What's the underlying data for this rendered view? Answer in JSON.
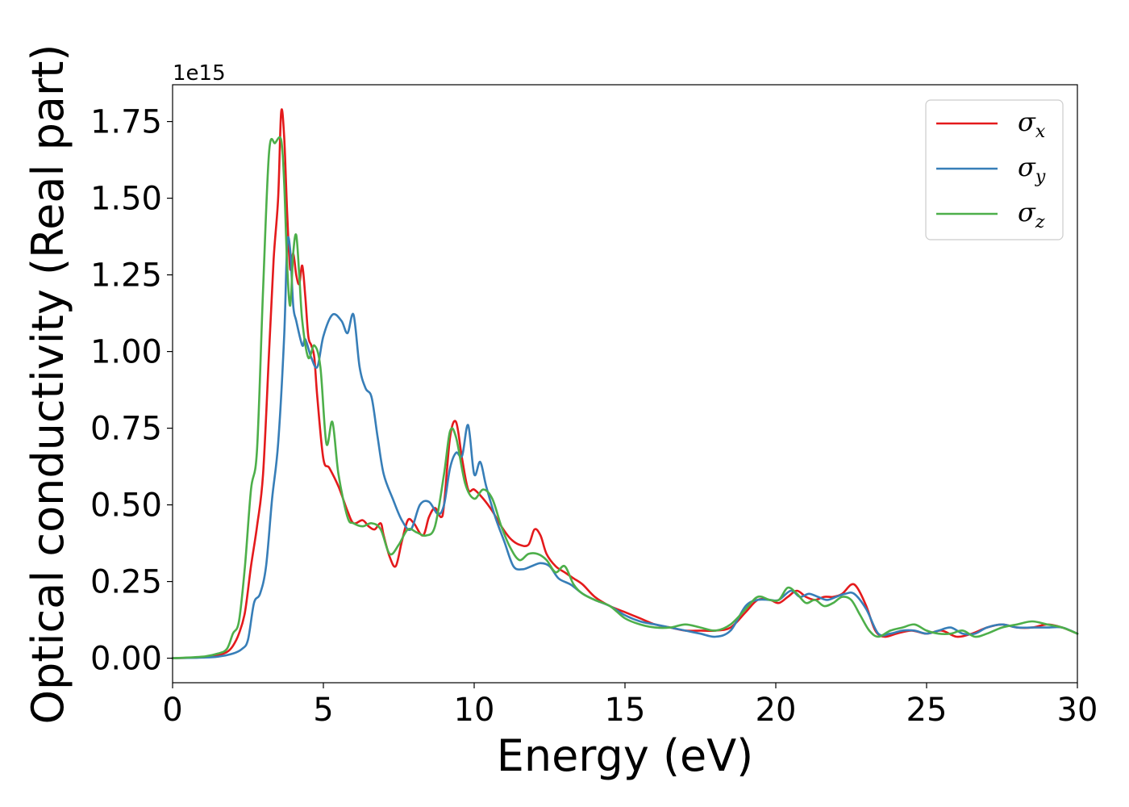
{
  "chart_data": {
    "type": "line",
    "xlabel": "Energy (eV)",
    "ylabel": "Optical conductivity (Real part)",
    "y_offset_text": "1e15",
    "y_scale_factor": 1000000000000000.0,
    "xlim": [
      0,
      30
    ],
    "ylim": [
      -0.08,
      1.87
    ],
    "xticks": [
      0,
      5,
      10,
      15,
      20,
      25,
      30
    ],
    "xtick_labels": [
      "0",
      "5",
      "10",
      "15",
      "20",
      "25",
      "30"
    ],
    "yticks": [
      0,
      0.25,
      0.5,
      0.75,
      1.0,
      1.25,
      1.5,
      1.75
    ],
    "ytick_labels": [
      "0.00",
      "0.25",
      "0.50",
      "0.75",
      "1.00",
      "1.25",
      "1.50",
      "1.75"
    ],
    "grid": false,
    "legend_position": "top-right",
    "series": [
      {
        "name": "σx",
        "symbol": "σ",
        "subscript": "x",
        "color": "#e41a1c",
        "x": [
          0,
          1,
          1.5,
          1.8,
          2.0,
          2.2,
          2.4,
          2.6,
          2.8,
          3.0,
          3.2,
          3.35,
          3.5,
          3.6,
          3.7,
          3.8,
          3.9,
          4.0,
          4.1,
          4.2,
          4.3,
          4.4,
          4.5,
          4.6,
          4.7,
          4.8,
          5.0,
          5.2,
          5.5,
          5.8,
          6.0,
          6.3,
          6.5,
          6.7,
          6.9,
          7.0,
          7.2,
          7.4,
          7.6,
          7.8,
          8.0,
          8.3,
          8.5,
          8.7,
          8.9,
          9.0,
          9.2,
          9.4,
          9.6,
          9.8,
          10.0,
          10.3,
          10.6,
          10.9,
          11.2,
          11.5,
          11.8,
          12.0,
          12.2,
          12.4,
          12.7,
          13.0,
          13.3,
          13.6,
          14.0,
          14.5,
          15.0,
          15.5,
          16.0,
          16.5,
          17.0,
          17.5,
          18.0,
          18.5,
          19.0,
          19.4,
          19.8,
          20.1,
          20.4,
          20.7,
          21.0,
          21.3,
          21.6,
          21.9,
          22.2,
          22.5,
          22.7,
          23.0,
          23.3,
          23.6,
          24.0,
          24.5,
          25.0,
          25.5,
          26.0,
          26.5,
          27.0,
          27.5,
          28.0,
          28.5,
          29.0,
          29.5,
          30.0
        ],
        "values": [
          0.0,
          0.003,
          0.01,
          0.02,
          0.04,
          0.08,
          0.15,
          0.3,
          0.43,
          0.6,
          1.0,
          1.3,
          1.5,
          1.78,
          1.7,
          1.45,
          1.27,
          1.32,
          1.25,
          1.22,
          1.28,
          1.18,
          1.05,
          1.02,
          0.98,
          0.85,
          0.65,
          0.62,
          0.56,
          0.48,
          0.44,
          0.45,
          0.43,
          0.42,
          0.44,
          0.4,
          0.33,
          0.3,
          0.38,
          0.45,
          0.44,
          0.4,
          0.46,
          0.49,
          0.46,
          0.5,
          0.72,
          0.77,
          0.65,
          0.55,
          0.55,
          0.52,
          0.48,
          0.43,
          0.39,
          0.37,
          0.37,
          0.42,
          0.4,
          0.34,
          0.3,
          0.28,
          0.26,
          0.24,
          0.2,
          0.17,
          0.15,
          0.13,
          0.11,
          0.1,
          0.09,
          0.09,
          0.09,
          0.1,
          0.15,
          0.19,
          0.19,
          0.18,
          0.2,
          0.22,
          0.2,
          0.19,
          0.2,
          0.2,
          0.21,
          0.24,
          0.23,
          0.17,
          0.09,
          0.07,
          0.08,
          0.09,
          0.08,
          0.09,
          0.07,
          0.08,
          0.1,
          0.11,
          0.1,
          0.1,
          0.11,
          0.1,
          0.08
        ]
      },
      {
        "name": "σy",
        "symbol": "σ",
        "subscript": "y",
        "color": "#377eb8",
        "x": [
          0,
          1,
          1.5,
          2.0,
          2.3,
          2.5,
          2.7,
          2.9,
          3.1,
          3.3,
          3.5,
          3.7,
          3.8,
          3.9,
          4.0,
          4.1,
          4.3,
          4.4,
          4.6,
          4.8,
          5.0,
          5.3,
          5.6,
          5.8,
          6.0,
          6.2,
          6.4,
          6.6,
          6.8,
          7.0,
          7.3,
          7.6,
          7.9,
          8.2,
          8.5,
          8.8,
          9.0,
          9.2,
          9.4,
          9.6,
          9.8,
          10.0,
          10.2,
          10.4,
          10.7,
          11.0,
          11.3,
          11.6,
          11.9,
          12.2,
          12.5,
          12.8,
          13.2,
          13.6,
          14.0,
          14.5,
          15.0,
          15.5,
          16.0,
          16.5,
          17.0,
          17.5,
          18.0,
          18.5,
          19.0,
          19.4,
          19.8,
          20.1,
          20.5,
          20.8,
          21.1,
          21.4,
          21.7,
          22.0,
          22.3,
          22.6,
          23.0,
          23.4,
          23.8,
          24.2,
          24.6,
          25.0,
          25.4,
          25.8,
          26.2,
          26.6,
          27.0,
          27.5,
          28.0,
          28.5,
          29.0,
          29.5,
          30.0
        ],
        "values": [
          0.0,
          0.002,
          0.005,
          0.015,
          0.03,
          0.06,
          0.18,
          0.21,
          0.3,
          0.52,
          0.7,
          1.05,
          1.35,
          1.33,
          1.15,
          1.1,
          1.02,
          1.04,
          0.98,
          0.95,
          1.05,
          1.12,
          1.1,
          1.06,
          1.12,
          0.95,
          0.88,
          0.85,
          0.72,
          0.6,
          0.52,
          0.45,
          0.42,
          0.5,
          0.51,
          0.47,
          0.5,
          0.62,
          0.67,
          0.66,
          0.76,
          0.6,
          0.64,
          0.56,
          0.46,
          0.38,
          0.3,
          0.29,
          0.3,
          0.31,
          0.3,
          0.26,
          0.24,
          0.21,
          0.19,
          0.17,
          0.14,
          0.12,
          0.11,
          0.1,
          0.09,
          0.08,
          0.07,
          0.09,
          0.17,
          0.19,
          0.19,
          0.19,
          0.22,
          0.2,
          0.21,
          0.2,
          0.19,
          0.2,
          0.21,
          0.21,
          0.16,
          0.08,
          0.08,
          0.09,
          0.09,
          0.08,
          0.09,
          0.1,
          0.08,
          0.08,
          0.1,
          0.11,
          0.1,
          0.1,
          0.1,
          0.1,
          0.08
        ]
      },
      {
        "name": "σz",
        "symbol": "σ",
        "subscript": "z",
        "color": "#4daf4a",
        "x": [
          0,
          1,
          1.5,
          1.8,
          2.0,
          2.2,
          2.4,
          2.6,
          2.8,
          3.0,
          3.2,
          3.4,
          3.6,
          3.7,
          3.8,
          3.9,
          4.0,
          4.1,
          4.2,
          4.3,
          4.5,
          4.7,
          4.9,
          5.1,
          5.3,
          5.5,
          5.8,
          6.0,
          6.3,
          6.6,
          6.9,
          7.2,
          7.5,
          7.8,
          8.1,
          8.4,
          8.7,
          9.0,
          9.2,
          9.4,
          9.7,
          10.0,
          10.3,
          10.6,
          10.9,
          11.2,
          11.5,
          11.8,
          12.1,
          12.4,
          12.7,
          13.0,
          13.3,
          13.6,
          14.0,
          14.5,
          15.0,
          15.5,
          16.0,
          16.5,
          17.0,
          17.5,
          18.0,
          18.5,
          19.0,
          19.4,
          19.8,
          20.1,
          20.4,
          20.7,
          21.0,
          21.3,
          21.6,
          21.9,
          22.2,
          22.5,
          22.8,
          23.1,
          23.4,
          23.8,
          24.2,
          24.6,
          25.0,
          25.4,
          25.8,
          26.2,
          26.6,
          27.0,
          27.5,
          28.0,
          28.5,
          29.0,
          29.5,
          30.0
        ],
        "values": [
          0.0,
          0.005,
          0.015,
          0.03,
          0.08,
          0.12,
          0.3,
          0.55,
          0.68,
          1.2,
          1.65,
          1.68,
          1.69,
          1.55,
          1.28,
          1.15,
          1.32,
          1.38,
          1.25,
          1.1,
          0.98,
          1.02,
          0.95,
          0.7,
          0.77,
          0.6,
          0.46,
          0.44,
          0.43,
          0.44,
          0.42,
          0.34,
          0.37,
          0.42,
          0.41,
          0.4,
          0.43,
          0.6,
          0.74,
          0.72,
          0.57,
          0.52,
          0.55,
          0.52,
          0.43,
          0.36,
          0.32,
          0.34,
          0.34,
          0.32,
          0.28,
          0.3,
          0.24,
          0.21,
          0.19,
          0.17,
          0.13,
          0.11,
          0.1,
          0.1,
          0.11,
          0.1,
          0.09,
          0.11,
          0.16,
          0.2,
          0.19,
          0.19,
          0.23,
          0.21,
          0.18,
          0.19,
          0.17,
          0.18,
          0.2,
          0.19,
          0.14,
          0.09,
          0.07,
          0.09,
          0.1,
          0.11,
          0.09,
          0.08,
          0.08,
          0.09,
          0.07,
          0.08,
          0.1,
          0.11,
          0.12,
          0.11,
          0.1,
          0.08
        ]
      }
    ]
  }
}
